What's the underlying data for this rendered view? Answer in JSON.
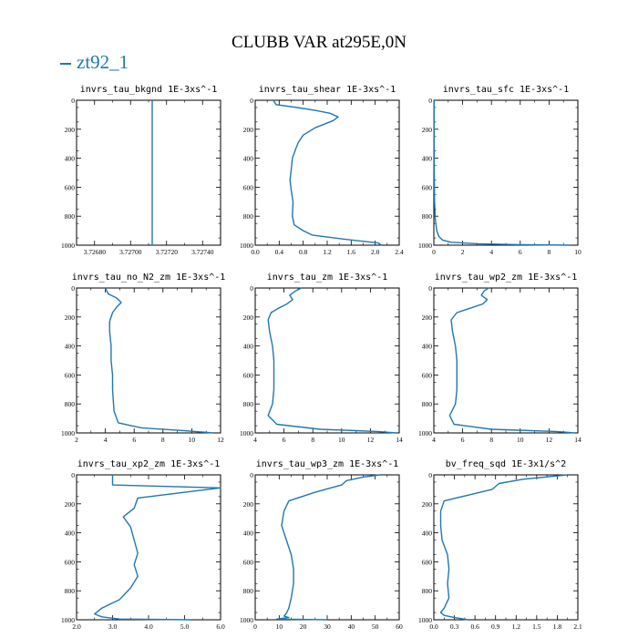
{
  "figure": {
    "title": "CLUBB VAR at295E,0N",
    "legend_label": "zt92_1",
    "line_color": "#1f77b4"
  },
  "chart_data": [
    {
      "type": "line",
      "title": "invrs_tau_bkgnd   1E-3xs^-1",
      "xlim": [
        3.7267,
        3.7275
      ],
      "ylim": [
        1000,
        0
      ],
      "xticks": [
        "3.72680",
        "3.72700",
        "3.72720",
        "3.72740"
      ],
      "xtick_values": [
        3.7268,
        3.727,
        3.7272,
        3.7274
      ],
      "yticks": [
        0,
        200,
        400,
        600,
        800,
        1000
      ],
      "series": [
        {
          "x": [
            3.72712,
            3.72712
          ],
          "y": [
            0,
            1000
          ]
        }
      ]
    },
    {
      "type": "line",
      "title": "invrs_tau_shear   1E-3xs^-1",
      "xlim": [
        0.0,
        2.4
      ],
      "ylim": [
        1000,
        0
      ],
      "xticks": [
        "0.0",
        "0.4",
        "0.8",
        "1.2",
        "1.6",
        "2.0",
        "2.4"
      ],
      "xtick_values": [
        0.0,
        0.4,
        0.8,
        1.2,
        1.6,
        2.0,
        2.4
      ],
      "yticks": [
        0,
        200,
        400,
        600,
        800,
        1000
      ],
      "series": [
        {
          "x": [
            0.3,
            0.35,
            0.7,
            1.0,
            1.25,
            1.38,
            1.3,
            1.0,
            0.8,
            0.72,
            0.68,
            0.62,
            0.6,
            0.58,
            0.6,
            0.63,
            0.62,
            0.65,
            0.8,
            0.95,
            1.5,
            2.05,
            2.1
          ],
          "y": [
            0,
            30,
            50,
            70,
            90,
            115,
            140,
            190,
            240,
            290,
            330,
            400,
            480,
            550,
            620,
            700,
            800,
            860,
            900,
            930,
            960,
            985,
            1000
          ]
        }
      ]
    },
    {
      "type": "line",
      "title": "invrs_tau_sfc   1E-3xs^-1",
      "xlim": [
        0,
        10
      ],
      "ylim": [
        1000,
        0
      ],
      "xticks": [
        "0",
        "2",
        "4",
        "6",
        "8",
        "10"
      ],
      "xtick_values": [
        0,
        2,
        4,
        6,
        8,
        10
      ],
      "yticks": [
        0,
        200,
        400,
        600,
        800,
        1000
      ],
      "series": [
        {
          "x": [
            0.02,
            0.02,
            0.03,
            0.05,
            0.1,
            0.2,
            0.35,
            0.6,
            1.2,
            3.0,
            6.0,
            9.5
          ],
          "y": [
            0,
            200,
            500,
            700,
            820,
            900,
            940,
            965,
            980,
            990,
            996,
            1000
          ]
        }
      ]
    },
    {
      "type": "line",
      "title": "invrs_tau_no_N2_zm   1E-3xs^-1",
      "xlim": [
        2,
        12
      ],
      "ylim": [
        1000,
        0
      ],
      "xticks": [
        "2",
        "4",
        "6",
        "8",
        "10",
        "12"
      ],
      "xtick_values": [
        2,
        4,
        6,
        8,
        10,
        12
      ],
      "yticks": [
        0,
        200,
        400,
        600,
        800,
        1000
      ],
      "series": [
        {
          "x": [
            4.0,
            4.2,
            4.8,
            5.1,
            4.8,
            4.5,
            4.3,
            4.3,
            4.4,
            4.4,
            4.5,
            4.5,
            4.6,
            4.9,
            6.5,
            9.5,
            11.5
          ],
          "y": [
            0,
            40,
            70,
            100,
            130,
            170,
            230,
            300,
            400,
            500,
            600,
            700,
            850,
            930,
            965,
            985,
            1000
          ]
        }
      ]
    },
    {
      "type": "line",
      "title": "invrs_tau_zm   1E-3xs^-1",
      "xlim": [
        4,
        14
      ],
      "ylim": [
        1000,
        0
      ],
      "xticks": [
        "4",
        "6",
        "8",
        "10",
        "12",
        "14"
      ],
      "xtick_values": [
        4,
        6,
        8,
        10,
        12,
        14
      ],
      "yticks": [
        0,
        200,
        400,
        600,
        800,
        1000
      ],
      "series": [
        {
          "x": [
            7.2,
            6.8,
            6.4,
            6.6,
            6.2,
            5.6,
            5.1,
            4.9,
            5.0,
            5.2,
            5.3,
            5.3,
            5.3,
            5.2,
            4.9,
            5.5,
            8.5,
            12.5,
            13.8
          ],
          "y": [
            0,
            20,
            50,
            80,
            110,
            140,
            170,
            220,
            300,
            400,
            500,
            600,
            700,
            800,
            880,
            940,
            975,
            990,
            1000
          ]
        }
      ]
    },
    {
      "type": "line",
      "title": "invrs_tau_wp2_zm   1E-3xs^-1",
      "xlim": [
        4,
        14
      ],
      "ylim": [
        1000,
        0
      ],
      "xticks": [
        "4",
        "6",
        "8",
        "10",
        "12",
        "14"
      ],
      "xtick_values": [
        4,
        6,
        8,
        10,
        12,
        14
      ],
      "yticks": [
        0,
        200,
        400,
        600,
        800,
        1000
      ],
      "series": [
        {
          "x": [
            7.8,
            7.5,
            7.3,
            7.7,
            7.4,
            6.5,
            5.6,
            5.2,
            5.3,
            5.5,
            5.6,
            5.6,
            5.6,
            5.5,
            5.1,
            5.4,
            8.0,
            12.5,
            13.8
          ],
          "y": [
            0,
            20,
            50,
            80,
            110,
            140,
            170,
            220,
            300,
            400,
            500,
            600,
            700,
            800,
            880,
            940,
            975,
            990,
            1000
          ]
        }
      ]
    },
    {
      "type": "line",
      "title": "invrs_tau_xp2_zm   1E-3xs^-1",
      "xlim": [
        2.0,
        6.0
      ],
      "ylim": [
        1000,
        0
      ],
      "xticks": [
        "2.0",
        "3.0",
        "4.0",
        "5.0",
        "6.0"
      ],
      "xtick_values": [
        2.0,
        3.0,
        4.0,
        5.0,
        6.0
      ],
      "yticks": [
        0,
        200,
        400,
        600,
        800,
        1000
      ],
      "series": [
        {
          "x": [
            3.0,
            3.0,
            6.0,
            5.5,
            3.7,
            3.6,
            3.3,
            3.5,
            3.6,
            3.7,
            3.6,
            3.7,
            3.5,
            3.2,
            2.7,
            2.5,
            2.7,
            3.2,
            5.2
          ],
          "y": [
            0,
            70,
            90,
            105,
            160,
            230,
            290,
            360,
            450,
            540,
            620,
            700,
            780,
            860,
            920,
            960,
            980,
            995,
            1000
          ]
        }
      ]
    },
    {
      "type": "line",
      "title": "invrs_tau_wp3_zm   1E-3xs^-1",
      "xlim": [
        0,
        60
      ],
      "ylim": [
        1000,
        0
      ],
      "xticks": [
        "0",
        "10",
        "20",
        "30",
        "40",
        "50",
        "60"
      ],
      "xtick_values": [
        0,
        10,
        20,
        30,
        40,
        50,
        60
      ],
      "yticks": [
        0,
        200,
        400,
        600,
        800,
        1000
      ],
      "series": [
        {
          "x": [
            52,
            45,
            38,
            36,
            25,
            14,
            12,
            11,
            13,
            15,
            16,
            16,
            15,
            14,
            13,
            12,
            14,
            9,
            30
          ],
          "y": [
            0,
            15,
            40,
            70,
            120,
            180,
            250,
            350,
            450,
            550,
            650,
            750,
            850,
            920,
            955,
            975,
            985,
            995,
            1000
          ]
        }
      ]
    },
    {
      "type": "line",
      "title": "bv_freq_sqd   1E-3x1/s^2",
      "xlim": [
        0.0,
        2.1
      ],
      "ylim": [
        1000,
        0
      ],
      "xticks": [
        "0.0",
        "0.3",
        "0.6",
        "0.9",
        "1.2",
        "1.5",
        "1.8",
        "2.1"
      ],
      "xtick_values": [
        0.0,
        0.3,
        0.6,
        0.9,
        1.2,
        1.5,
        1.8,
        2.1
      ],
      "yticks": [
        0,
        200,
        400,
        600,
        800,
        1000
      ],
      "series": [
        {
          "x": [
            1.95,
            1.3,
            0.95,
            0.85,
            0.5,
            0.15,
            0.1,
            0.1,
            0.12,
            0.2,
            0.22,
            0.2,
            0.22,
            0.15,
            0.1,
            0.15,
            0.3,
            0.5
          ],
          "y": [
            0,
            30,
            60,
            100,
            140,
            180,
            250,
            350,
            450,
            550,
            650,
            750,
            850,
            920,
            950,
            970,
            985,
            1000
          ]
        }
      ]
    }
  ]
}
